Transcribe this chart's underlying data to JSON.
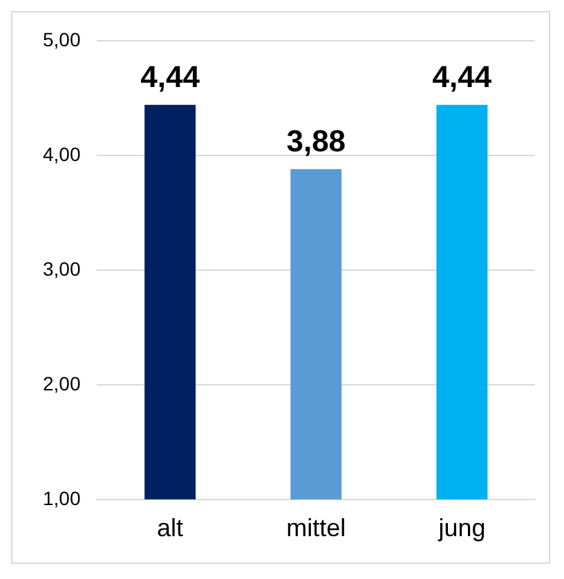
{
  "chart_data": {
    "type": "bar",
    "categories": [
      "alt",
      "mittel",
      "jung"
    ],
    "values": [
      4.44,
      3.88,
      4.44
    ],
    "colors": [
      "#002060",
      "#5b9bd5",
      "#00b0f0"
    ],
    "value_labels": [
      "4,44",
      "3,88",
      "4,44"
    ],
    "ylim": [
      1,
      5
    ],
    "yticks": [
      {
        "value": 1,
        "label": "1,00"
      },
      {
        "value": 2,
        "label": "2,00"
      },
      {
        "value": 3,
        "label": "3,00"
      },
      {
        "value": 4,
        "label": "4,00"
      },
      {
        "value": 5,
        "label": "5,00"
      }
    ],
    "grid": "y",
    "legend": false
  }
}
